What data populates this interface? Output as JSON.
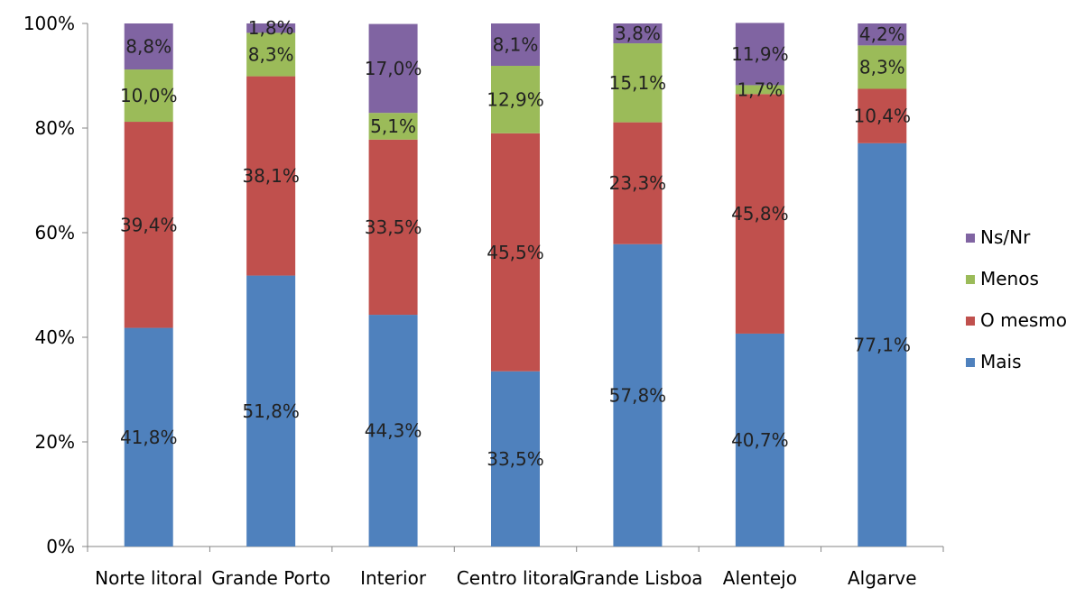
{
  "chart_data": {
    "type": "bar",
    "stacked": true,
    "percent_stacked": true,
    "categories": [
      "Norte litoral",
      "Grande Porto",
      "Interior",
      "Centro litoral",
      "Grande Lisboa",
      "Alentejo",
      "Algarve"
    ],
    "series": [
      {
        "name": "Mais",
        "color": "#4F81BD",
        "values": [
          41.8,
          51.8,
          44.3,
          33.5,
          57.8,
          40.7,
          77.1
        ],
        "labels": [
          "41,8%",
          "51,8%",
          "44,3%",
          "33,5%",
          "57,8%",
          "40,7%",
          "77,1%"
        ]
      },
      {
        "name": "O mesmo",
        "color": "#C0504D",
        "values": [
          39.4,
          38.1,
          33.5,
          45.5,
          23.3,
          45.8,
          10.4
        ],
        "labels": [
          "39,4%",
          "38,1%",
          "33,5%",
          "45,5%",
          "23,3%",
          "45,8%",
          "10,4%"
        ]
      },
      {
        "name": "Menos",
        "color": "#9BBB59",
        "values": [
          10.0,
          8.3,
          5.1,
          12.9,
          15.1,
          1.7,
          8.3
        ],
        "labels": [
          "10,0%",
          "8,3%",
          "5,1%",
          "12,9%",
          "15,1%",
          "1,7%",
          "8,3%"
        ]
      },
      {
        "name": "Ns/Nr",
        "color": "#8064A2",
        "values": [
          8.8,
          1.8,
          17.0,
          8.1,
          3.8,
          11.9,
          4.2
        ],
        "labels": [
          "8,8%",
          "1,8%",
          "17,0%",
          "8,1%",
          "3,8%",
          "11,9%",
          "4,2%"
        ]
      }
    ],
    "yticks": [
      "0%",
      "20%",
      "40%",
      "60%",
      "80%",
      "100%"
    ],
    "ylim": [
      0,
      100
    ],
    "legend": "right",
    "grid": false,
    "title": "",
    "xlabel": "",
    "ylabel": ""
  }
}
